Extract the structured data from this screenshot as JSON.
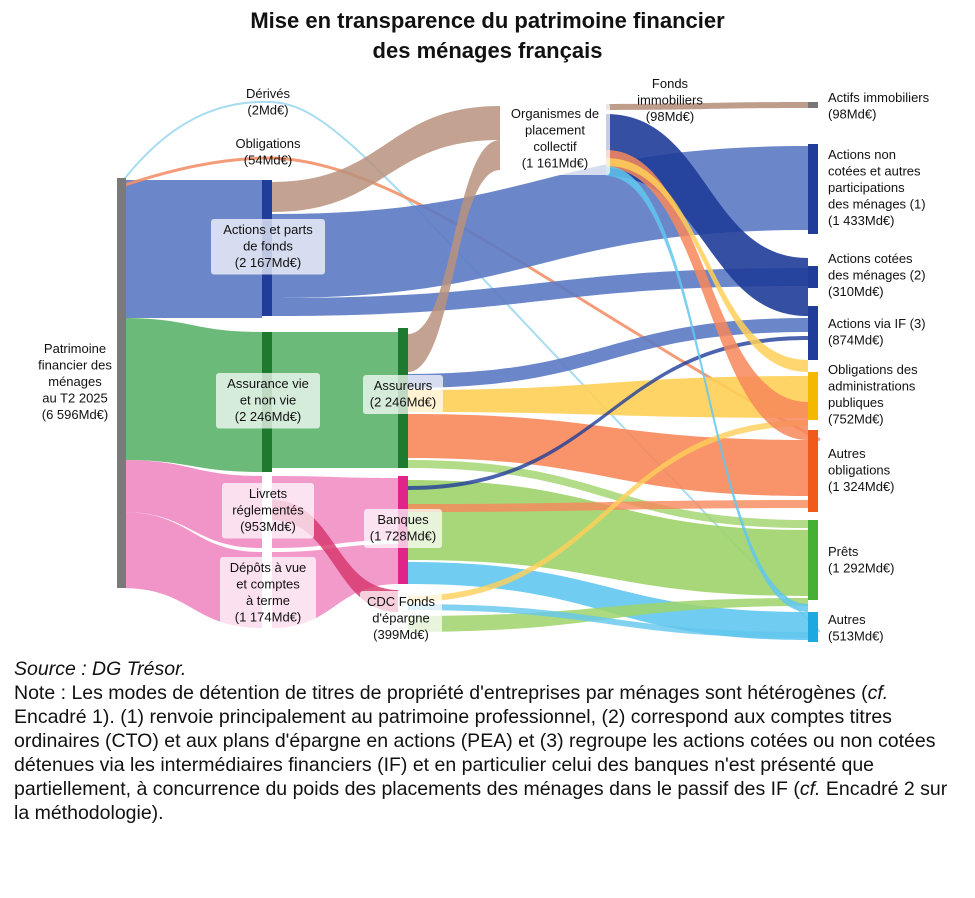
{
  "title_line1": "Mise en transparence du patrimoine financier",
  "title_line2": "des ménages français",
  "nodes": {
    "patrimoine": {
      "lines": [
        "Patrimoine",
        "financier des",
        "ménages",
        "au T2 2025",
        "(6 596Md€)"
      ],
      "color": "#7a7a7a"
    },
    "derives": {
      "lines": [
        "Dérivés",
        "(2Md€)"
      ]
    },
    "obligations": {
      "lines": [
        "Obligations",
        "(54Md€)"
      ]
    },
    "actions_parts": {
      "lines": [
        "Actions et parts",
        "de fonds",
        "(2 167Md€)"
      ],
      "color": "#1f3d99"
    },
    "assurance": {
      "lines": [
        "Assurance vie",
        "et non vie",
        "(2 246Md€)"
      ],
      "color": "#1e7a2e"
    },
    "livrets": {
      "lines": [
        "Livrets",
        "réglementés",
        "(953Md€)"
      ]
    },
    "depots": {
      "lines": [
        "Dépôts à vue",
        "et comptes",
        "à terme",
        "(1 174Md€)"
      ]
    },
    "opc": {
      "lines": [
        "Organismes de",
        "placement",
        "collectif",
        "(1 161Md€)"
      ]
    },
    "fonds_immo": {
      "lines": [
        "Fonds",
        "immobiliers",
        "(98Md€)"
      ]
    },
    "assureurs": {
      "lines": [
        "Assureurs",
        "(2 246Md€)"
      ],
      "color": "#1e7a2e"
    },
    "banques": {
      "lines": [
        "Banques",
        "(1 728Md€)"
      ],
      "color": "#e0248a"
    },
    "cdc": {
      "lines": [
        "CDC Fonds",
        "d'épargne",
        "(399Md€)"
      ]
    },
    "actifs_immo": {
      "lines": [
        "Actifs immobiliers",
        "(98Md€)"
      ],
      "color": "#777777"
    },
    "actions_non_cotees": {
      "lines": [
        "Actions non",
        "cotées et autres",
        "participations",
        "des ménages (1)",
        "(1 433Md€)"
      ],
      "color": "#1f3d99"
    },
    "actions_cotees": {
      "lines": [
        "Actions cotées",
        "des ménages (2)",
        "(310Md€)"
      ],
      "color": "#1f3d99"
    },
    "actions_if": {
      "lines": [
        "Actions via IF (3)",
        "(874Md€)"
      ],
      "color": "#1f3d99"
    },
    "oblig_apu": {
      "lines": [
        "Obligations des",
        "administrations",
        "publiques",
        "(752Md€)"
      ],
      "color": "#f5b800"
    },
    "autres_oblig": {
      "lines": [
        "Autres",
        "obligations",
        "(1 324Md€)"
      ],
      "color": "#f05a1a"
    },
    "prets": {
      "lines": [
        "Prêts",
        "(1 292Md€)"
      ],
      "color": "#46b034"
    },
    "autres": {
      "lines": [
        "Autres",
        "(513Md€)"
      ],
      "color": "#1ea8e0"
    }
  },
  "colors": {
    "actions": "#5b7ac4",
    "assurance": "#5cb36a",
    "epargne": "#f08ac2",
    "opc": "#b8927e",
    "oblig_apu": "#ffcf57",
    "autres_oblig": "#f7875a",
    "prets": "#9fd36a",
    "autres": "#61c7ee",
    "obligations_flow": "#f3916a",
    "derives_flow": "#9fd8f0",
    "cdc_flow": "#d83a70",
    "dark_actions": "#1f3d99"
  },
  "footer": {
    "source": "Source : DG Trésor.",
    "note_p1": "Note : Les modes de détention de titres de propriété d'entreprises par ménages sont hétérogènes (",
    "cf1": "cf.",
    "note_p2": " Encadré 1). (1) renvoie principalement au patrimoine professionnel, (2) correspond aux comptes titres ordinaires (CTO) et aux plans d'épargne en actions (PEA) et (3) regroupe les actions cotées ou non cotées détenues via les intermédiaires financiers (IF) et en particulier celui des banques n'est présenté que partiellement, à concurrence du poids des placements des ménages dans le passif des IF (",
    "cf2": "cf.",
    "note_p3": " Encadré 2 sur la méthodologie)."
  }
}
